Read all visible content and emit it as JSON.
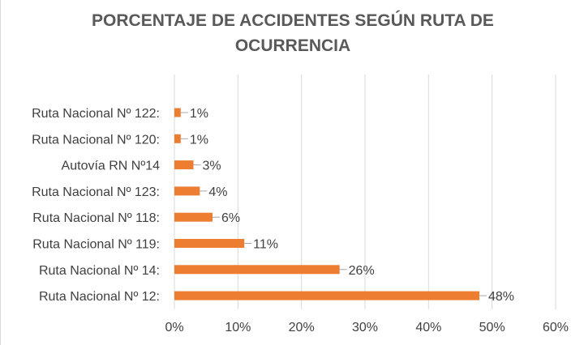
{
  "chart_data": {
    "type": "bar",
    "orientation": "horizontal",
    "title_lines": [
      "PORCENTAJE DE ACCIDENTES SEGÚN RUTA DE",
      "OCURRENCIA"
    ],
    "categories": [
      "Ruta Nacional Nº 122:",
      "Ruta Nacional Nº 120:",
      "Autovía RN Nº14",
      "Ruta Nacional Nº 123:",
      "Ruta Nacional Nº 118:",
      "Ruta Nacional Nº 119:",
      "Ruta Nacional Nº 14:",
      "Ruta Nacional Nº 12:"
    ],
    "values": [
      1,
      1,
      3,
      4,
      6,
      11,
      26,
      48
    ],
    "data_labels": [
      "1%",
      "1%",
      "3%",
      "4%",
      "6%",
      "11%",
      "26%",
      "48%"
    ],
    "xlim": [
      0,
      60
    ],
    "x_ticks": [
      0,
      10,
      20,
      30,
      40,
      50,
      60
    ],
    "x_tick_labels": [
      "0%",
      "10%",
      "20%",
      "30%",
      "40%",
      "50%",
      "60%"
    ],
    "xlabel": "",
    "ylabel": "",
    "grid": "vertical",
    "legend": "none",
    "colors": {
      "bar": "#ed7d31",
      "grid": "#d9d9d9",
      "text": "#404040",
      "title": "#595959"
    }
  }
}
